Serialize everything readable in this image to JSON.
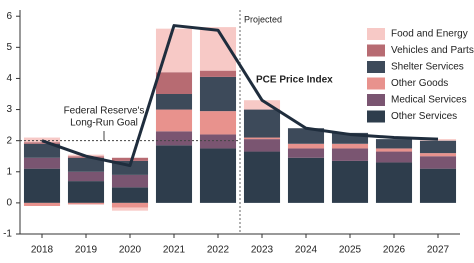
{
  "chart_data": {
    "type": "stacked_bar_line",
    "categories": [
      "2018",
      "2019",
      "2020",
      "2021",
      "2022",
      "2023",
      "2024",
      "2025",
      "2026",
      "2027"
    ],
    "series": [
      {
        "name": "Other Services",
        "color": "#2e3d4c",
        "values": [
          1.1,
          0.7,
          0.5,
          1.85,
          1.75,
          1.65,
          1.45,
          1.35,
          1.3,
          1.1
        ]
      },
      {
        "name": "Medical Services",
        "color": "#7a5571",
        "values": [
          0.35,
          0.3,
          0.4,
          0.45,
          0.45,
          0.4,
          0.3,
          0.4,
          0.35,
          0.4
        ]
      },
      {
        "name": "Other Goods",
        "color": "#e8928d",
        "values": [
          -0.1,
          -0.05,
          -0.15,
          0.7,
          0.75,
          0.05,
          0.15,
          0.15,
          0.1,
          0.1
        ]
      },
      {
        "name": "Shelter Services",
        "color": "#3d4a5a",
        "values": [
          0.45,
          0.45,
          0.45,
          0.5,
          1.1,
          0.9,
          0.5,
          0.35,
          0.3,
          0.4
        ]
      },
      {
        "name": "Vehicles and Parts",
        "color": "#b76b72",
        "values": [
          0.05,
          0.05,
          0.1,
          0.7,
          0.2,
          0,
          0,
          0,
          0,
          0
        ]
      },
      {
        "name": "Food and Energy",
        "color": "#f7c9c6",
        "values": [
          0.15,
          0.05,
          -0.1,
          1.4,
          1.4,
          0.3,
          0,
          0,
          0,
          0.05
        ]
      }
    ],
    "line": {
      "name": "PCE Price Index",
      "color": "#1f2d3d",
      "values": [
        2.0,
        1.5,
        1.2,
        5.7,
        5.55,
        3.3,
        2.4,
        2.2,
        2.1,
        2.05
      ]
    },
    "goal": {
      "label": [
        "Federal Reserve's",
        "Long-Run Goal"
      ],
      "value": 2
    },
    "projected": {
      "label": "Projected",
      "after": "2022"
    },
    "ylim": [
      -1,
      6.2
    ],
    "yticks": [
      -1,
      0,
      1,
      2,
      3,
      4,
      5,
      6
    ],
    "legend": "upper right"
  }
}
